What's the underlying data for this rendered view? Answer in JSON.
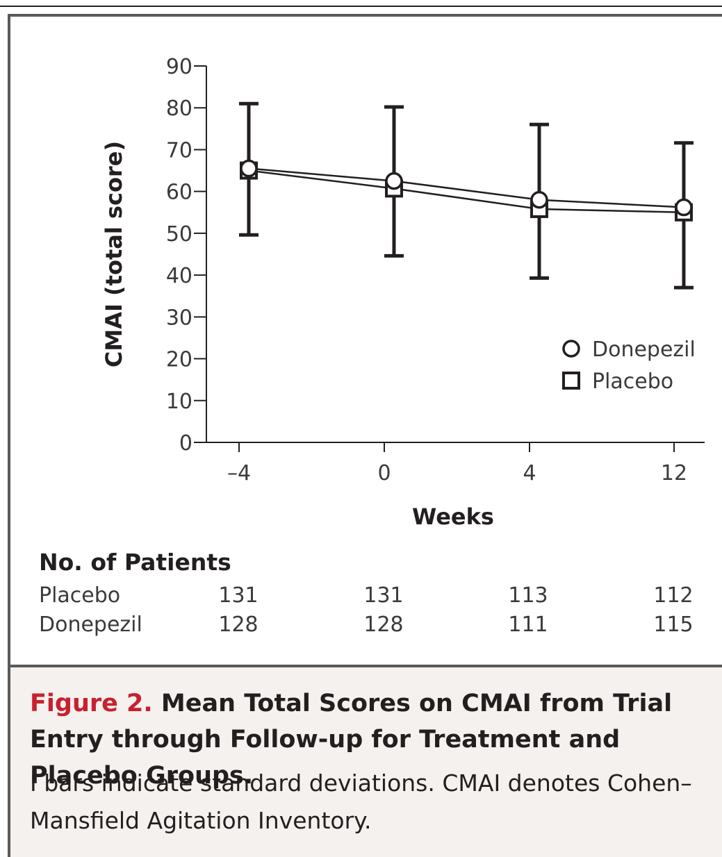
{
  "chart_data": {
    "type": "line",
    "ylabel": "CMAI (total score)",
    "xlabel": "Weeks",
    "categories": [
      "–4",
      "0",
      "4",
      "12"
    ],
    "ylim": [
      0,
      90
    ],
    "yticks": [
      "0",
      "10",
      "20",
      "30",
      "40",
      "50",
      "60",
      "70",
      "80",
      "90"
    ],
    "legend_position": "right",
    "series": [
      {
        "name": "Donepezil",
        "marker": "circle",
        "values": [
          65.5,
          62.5,
          58.0,
          56.2
        ],
        "error_high": [
          81.0,
          80.2,
          76.0,
          71.6
        ],
        "error_low": [
          49.6,
          44.6,
          39.3,
          37.0
        ]
      },
      {
        "name": "Placebo",
        "marker": "square",
        "values": [
          65.0,
          60.7,
          55.8,
          55.0
        ]
      }
    ]
  },
  "patients": {
    "heading": "No. of Patients",
    "rows": [
      {
        "label": "Placebo",
        "values": [
          "131",
          "131",
          "113",
          "112"
        ]
      },
      {
        "label": "Donepezil",
        "values": [
          "128",
          "128",
          "111",
          "115"
        ]
      }
    ]
  },
  "caption": {
    "figure_number": "Figure 2.",
    "title": "Mean Total Scores on CMAI from Trial Entry through Follow-up for Treatment and Placebo Groups.",
    "text": "I bars indicate standard deviations. CMAI denotes Cohen–Mansfield Agitation Inventory."
  },
  "colors": {
    "accent_red": "#c8202f",
    "ink": "#231f20",
    "caption_background": "#f4f1ee"
  }
}
